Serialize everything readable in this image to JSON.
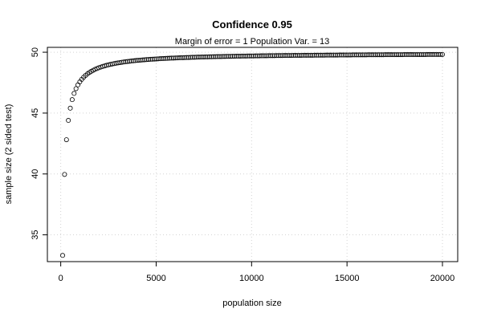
{
  "chart_data": {
    "type": "scatter",
    "title": "Confidence 0.95",
    "subtitle": "Margin of error =  1  Population Var. =  13",
    "xlabel": "population size",
    "ylabel": "sample size (2 sided test)",
    "xlim": [
      -700,
      20800
    ],
    "ylim": [
      32.8,
      50.4
    ],
    "xticks": [
      0,
      5000,
      10000,
      15000,
      20000
    ],
    "xtick_labels": [
      "0",
      "5000",
      "10000",
      "15000",
      "20000"
    ],
    "yticks": [
      35,
      40,
      45,
      50
    ],
    "ytick_labels": [
      "35",
      "40",
      "45",
      "50"
    ],
    "grid": true,
    "marker": "open-circle",
    "z": 1.96,
    "margin_of_error": 1,
    "population_variance": 13,
    "x_range": [
      100,
      20000
    ],
    "x_step": 100
  }
}
